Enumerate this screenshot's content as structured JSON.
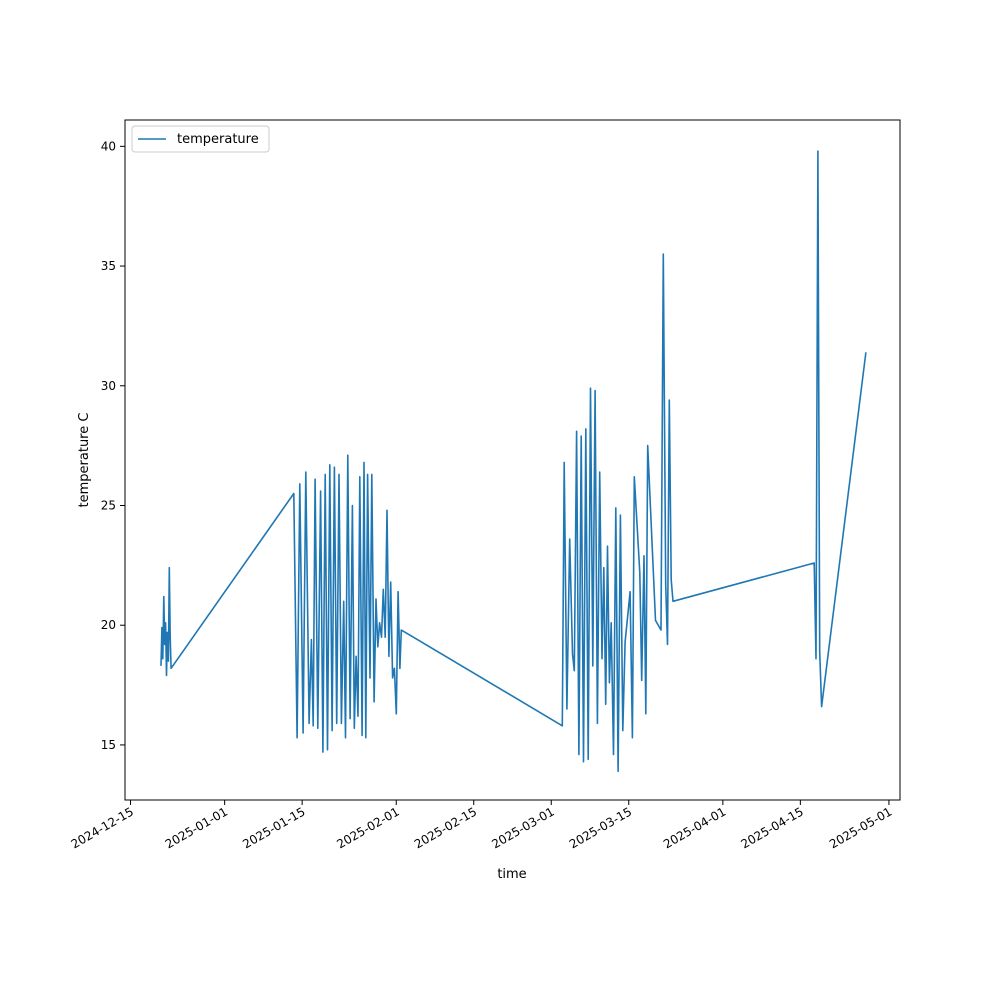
{
  "chart_data": {
    "type": "line",
    "title": "",
    "xlabel": "time",
    "ylabel": "temperature C",
    "x_is_date": true,
    "xlim": [
      "2024-12-14",
      "2025-05-03"
    ],
    "ylim": [
      12.7,
      41.1
    ],
    "x_ticks": [
      "2024-12-15",
      "2025-01-01",
      "2025-01-15",
      "2025-02-01",
      "2025-02-15",
      "2025-03-01",
      "2025-03-15",
      "2025-04-01",
      "2025-04-15",
      "2025-05-01"
    ],
    "y_ticks": [
      15,
      20,
      25,
      30,
      35,
      40
    ],
    "grid": false,
    "legend_position": "top-left",
    "series": [
      {
        "name": "temperature",
        "color": "#1f77b4",
        "points": [
          [
            "2024-12-20T12:00",
            18.3
          ],
          [
            "2024-12-20T16:00",
            19.9
          ],
          [
            "2024-12-20T20:00",
            18.6
          ],
          [
            "2024-12-21T00:00",
            21.2
          ],
          [
            "2024-12-21T04:00",
            19.2
          ],
          [
            "2024-12-21T08:00",
            20.1
          ],
          [
            "2024-12-21T12:00",
            17.9
          ],
          [
            "2024-12-21T16:00",
            19.7
          ],
          [
            "2024-12-21T20:00",
            18.5
          ],
          [
            "2024-12-22T00:00",
            22.4
          ],
          [
            "2024-12-22T04:00",
            19.5
          ],
          [
            "2024-12-22T08:00",
            18.2
          ],
          [
            "2025-01-13T12:00",
            25.5
          ],
          [
            "2025-01-14T02:00",
            15.3
          ],
          [
            "2025-01-14T14:00",
            25.9
          ],
          [
            "2025-01-15T04:00",
            15.5
          ],
          [
            "2025-01-15T16:00",
            26.4
          ],
          [
            "2025-01-16T06:00",
            15.9
          ],
          [
            "2025-01-16T16:00",
            19.4
          ],
          [
            "2025-01-17T00:00",
            15.8
          ],
          [
            "2025-01-17T08:00",
            26.1
          ],
          [
            "2025-01-17T20:00",
            15.7
          ],
          [
            "2025-01-18T08:00",
            25.6
          ],
          [
            "2025-01-18T18:00",
            14.7
          ],
          [
            "2025-01-19T04:00",
            26.3
          ],
          [
            "2025-01-19T14:00",
            14.8
          ],
          [
            "2025-01-20T00:00",
            26.7
          ],
          [
            "2025-01-20T10:00",
            15.6
          ],
          [
            "2025-01-20T20:00",
            26.6
          ],
          [
            "2025-01-21T06:00",
            15.9
          ],
          [
            "2025-01-21T16:00",
            26.3
          ],
          [
            "2025-01-22T02:00",
            15.9
          ],
          [
            "2025-01-22T12:00",
            21.0
          ],
          [
            "2025-01-22T20:00",
            15.3
          ],
          [
            "2025-01-23T06:00",
            27.1
          ],
          [
            "2025-01-23T16:00",
            16.1
          ],
          [
            "2025-01-24T02:00",
            25.0
          ],
          [
            "2025-01-24T10:00",
            15.7
          ],
          [
            "2025-01-24T18:00",
            18.7
          ],
          [
            "2025-01-25T02:00",
            16.2
          ],
          [
            "2025-01-25T10:00",
            26.2
          ],
          [
            "2025-01-25T20:00",
            15.4
          ],
          [
            "2025-01-26T04:00",
            26.8
          ],
          [
            "2025-01-26T12:00",
            15.3
          ],
          [
            "2025-01-26T20:00",
            26.3
          ],
          [
            "2025-01-27T06:00",
            17.8
          ],
          [
            "2025-01-27T14:00",
            26.3
          ],
          [
            "2025-01-28T00:00",
            16.8
          ],
          [
            "2025-01-28T08:00",
            21.1
          ],
          [
            "2025-01-28T16:00",
            19.1
          ],
          [
            "2025-01-29T00:00",
            20.1
          ],
          [
            "2025-01-29T08:00",
            19.5
          ],
          [
            "2025-01-29T16:00",
            21.5
          ],
          [
            "2025-01-30T00:00",
            19.5
          ],
          [
            "2025-01-30T08:00",
            24.8
          ],
          [
            "2025-01-30T16:00",
            18.7
          ],
          [
            "2025-01-31T00:00",
            21.8
          ],
          [
            "2025-01-31T08:00",
            17.8
          ],
          [
            "2025-01-31T16:00",
            18.2
          ],
          [
            "2025-02-01T00:00",
            16.3
          ],
          [
            "2025-02-01T08:00",
            21.4
          ],
          [
            "2025-02-01T16:00",
            18.2
          ],
          [
            "2025-02-01T22:00",
            19.8
          ],
          [
            "2025-03-03T00:00",
            15.8
          ],
          [
            "2025-03-03T08:00",
            26.8
          ],
          [
            "2025-03-03T20:00",
            16.5
          ],
          [
            "2025-03-04T08:00",
            23.6
          ],
          [
            "2025-03-04T20:00",
            18.8
          ],
          [
            "2025-03-05T04:00",
            18.1
          ],
          [
            "2025-03-05T14:00",
            28.1
          ],
          [
            "2025-03-06T00:00",
            14.6
          ],
          [
            "2025-03-06T10:00",
            27.9
          ],
          [
            "2025-03-06T20:00",
            14.3
          ],
          [
            "2025-03-07T06:00",
            28.2
          ],
          [
            "2025-03-07T16:00",
            14.4
          ],
          [
            "2025-03-08T02:00",
            29.9
          ],
          [
            "2025-03-08T12:00",
            18.3
          ],
          [
            "2025-03-08T22:00",
            29.8
          ],
          [
            "2025-03-09T08:00",
            15.9
          ],
          [
            "2025-03-09T18:00",
            26.4
          ],
          [
            "2025-03-10T04:00",
            18.6
          ],
          [
            "2025-03-10T12:00",
            22.4
          ],
          [
            "2025-03-10T20:00",
            16.7
          ],
          [
            "2025-03-11T04:00",
            23.3
          ],
          [
            "2025-03-11T12:00",
            17.6
          ],
          [
            "2025-03-11T20:00",
            20.1
          ],
          [
            "2025-03-12T06:00",
            14.6
          ],
          [
            "2025-03-12T16:00",
            24.9
          ],
          [
            "2025-03-13T02:00",
            13.9
          ],
          [
            "2025-03-13T12:00",
            24.6
          ],
          [
            "2025-03-13T22:00",
            15.6
          ],
          [
            "2025-03-14T08:00",
            19.3
          ],
          [
            "2025-03-15T06:00",
            21.4
          ],
          [
            "2025-03-15T16:00",
            15.3
          ],
          [
            "2025-03-16T00:00",
            26.2
          ],
          [
            "2025-03-17T00:00",
            22.2
          ],
          [
            "2025-03-17T08:00",
            17.7
          ],
          [
            "2025-03-17T18:00",
            22.9
          ],
          [
            "2025-03-18T02:00",
            16.3
          ],
          [
            "2025-03-18T10:00",
            27.5
          ],
          [
            "2025-03-19T20:00",
            20.2
          ],
          [
            "2025-03-20T20:00",
            19.8
          ],
          [
            "2025-03-21T06:00",
            35.5
          ],
          [
            "2025-03-21T16:00",
            21.7
          ],
          [
            "2025-03-22T00:00",
            19.2
          ],
          [
            "2025-03-22T08:00",
            29.4
          ],
          [
            "2025-03-22T16:00",
            21.9
          ],
          [
            "2025-03-23T00:00",
            21.0
          ],
          [
            "2025-04-17T12:00",
            22.6
          ],
          [
            "2025-04-17T20:00",
            18.6
          ],
          [
            "2025-04-18T04:00",
            39.8
          ],
          [
            "2025-04-18T12:00",
            18.9
          ],
          [
            "2025-04-18T20:00",
            16.6
          ],
          [
            "2025-04-26T20:00",
            31.4
          ]
        ]
      }
    ]
  }
}
